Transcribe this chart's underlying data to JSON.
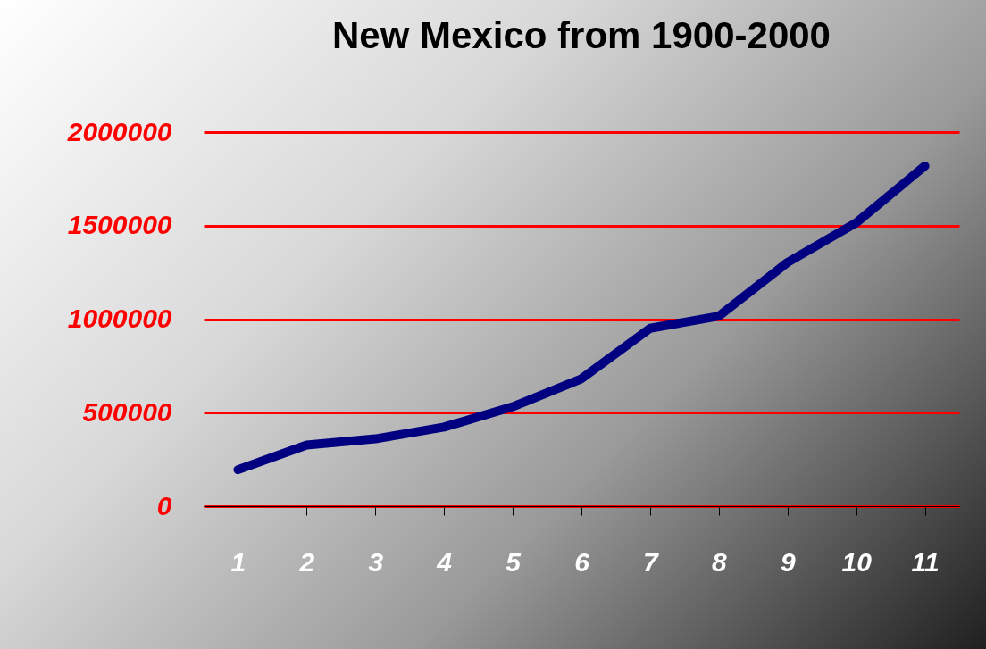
{
  "chart_data": {
    "type": "line",
    "title": "New Mexico from 1900-2000",
    "categories": [
      "1",
      "2",
      "3",
      "4",
      "5",
      "6",
      "7",
      "8",
      "9",
      "10",
      "11"
    ],
    "series": [
      {
        "color": "#000080",
        "values": [
          195000,
          327000,
          360000,
          423000,
          532000,
          681000,
          951000,
          1016000,
          1303000,
          1515000,
          1819000
        ]
      }
    ],
    "ylim": [
      0,
      2000000
    ],
    "yticks": [
      0,
      500000,
      1000000,
      1500000,
      2000000
    ],
    "grid": "y",
    "marker": "none",
    "line_style": "solid"
  }
}
